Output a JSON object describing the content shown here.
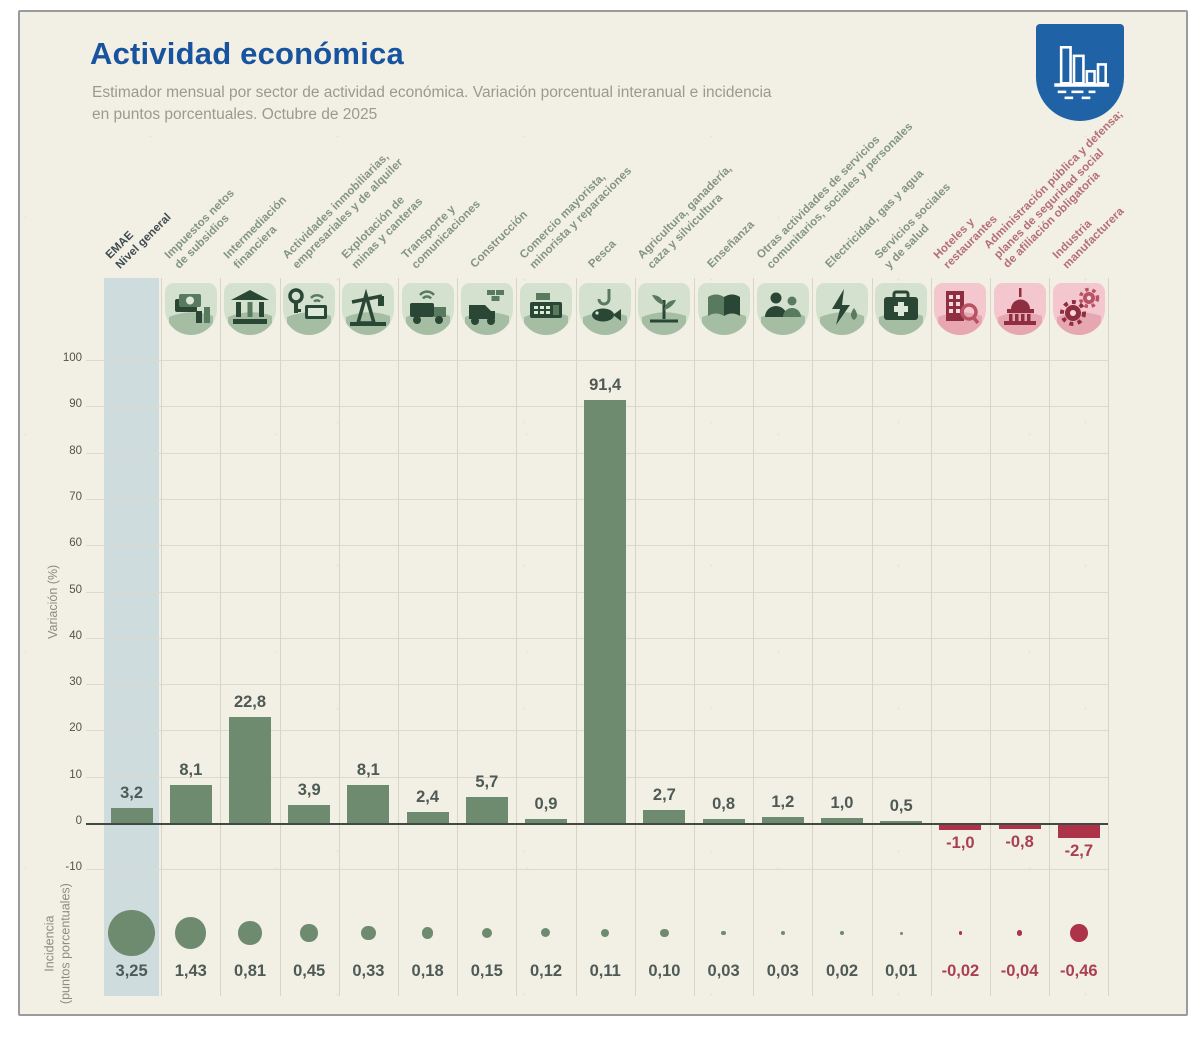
{
  "header": {
    "title": "Actividad económica",
    "subtitle_line1": "Estimador mensual por sector de actividad económica. Variación porcentual interanual e incidencia",
    "subtitle_line2": "en puntos porcentuales. Octubre de 2025",
    "logo_icon": "bar-chart-badge-icon"
  },
  "axes": {
    "variation_label": "Variación (%)",
    "incidence_label_line1": "Incidencia",
    "incidence_label_line2": "(puntos porcentuales)",
    "y_ticks": [
      100,
      90,
      80,
      70,
      60,
      50,
      40,
      30,
      20,
      10,
      0,
      -10
    ]
  },
  "colors": {
    "title_blue": "#17539e",
    "logo_blue": "#2062a6",
    "card_background": "#f2efe4",
    "highlight_band": "#cedcde",
    "bar_positive": "#6f8b6f",
    "bar_negative": "#ad3448",
    "value_positive_text": "#4d5a55",
    "value_negative_text": "#a93f50",
    "category_positive_text": "#83957f",
    "category_negative_text": "#b56e78",
    "grid": "#ddd9cc",
    "axis_line": "#3f4a41"
  },
  "chart_data": {
    "type": "bar",
    "title": "Actividad económica",
    "subtitle": "Estimador mensual por sector de actividad económica. Variación porcentual interanual e incidencia en puntos porcentuales. Octubre de 2025",
    "y_axis_top": "Variación (%)",
    "y_axis_bottom": "Incidencia (puntos porcentuales)",
    "ylim": [
      -10,
      100
    ],
    "y_ticks": [
      100,
      90,
      80,
      70,
      60,
      50,
      40,
      30,
      20,
      10,
      0,
      -10
    ],
    "grid": true,
    "sectors": [
      {
        "id": "emae-nivel-general",
        "label_lines": [
          "EMAE",
          "Nivel general"
        ],
        "icon": null,
        "tone": "highlight",
        "variation": 3.2,
        "variation_label": "3,2",
        "incidence": 3.25,
        "incidence_label": "3,25"
      },
      {
        "id": "impuestos-netos-de-subsidios",
        "label_lines": [
          "Impuestos netos",
          "de subsidios"
        ],
        "icon": "money",
        "tone": "green",
        "variation": 8.1,
        "variation_label": "8,1",
        "incidence": 1.43,
        "incidence_label": "1,43"
      },
      {
        "id": "intermediacion-financiera",
        "label_lines": [
          "Intermediación",
          "financiera"
        ],
        "icon": "bank",
        "tone": "green",
        "variation": 22.8,
        "variation_label": "22,8",
        "incidence": 0.81,
        "incidence_label": "0,81"
      },
      {
        "id": "actividades-inmobiliarias",
        "label_lines": [
          "Actividades inmobiliarias,",
          "empresariales y de alquiler"
        ],
        "icon": "real-estate",
        "tone": "green",
        "variation": 3.9,
        "variation_label": "3,9",
        "incidence": 0.45,
        "incidence_label": "0,45"
      },
      {
        "id": "explotacion-de-minas-y-canteras",
        "label_lines": [
          "Explotación de",
          "minas y canteras"
        ],
        "icon": "mining",
        "tone": "green",
        "variation": 8.1,
        "variation_label": "8,1",
        "incidence": 0.33,
        "incidence_label": "0,33"
      },
      {
        "id": "transporte-y-comunicaciones",
        "label_lines": [
          "Transporte y",
          "comunicaciones"
        ],
        "icon": "transport",
        "tone": "green",
        "variation": 2.4,
        "variation_label": "2,4",
        "incidence": 0.18,
        "incidence_label": "0,18"
      },
      {
        "id": "construccion",
        "label_lines": [
          "Construcción"
        ],
        "icon": "construction",
        "tone": "green",
        "variation": 5.7,
        "variation_label": "5,7",
        "incidence": 0.15,
        "incidence_label": "0,15"
      },
      {
        "id": "comercio-mayorista-minorista",
        "label_lines": [
          "Comercio mayorista,",
          "minorista y reparaciones"
        ],
        "icon": "commerce",
        "tone": "green",
        "variation": 0.9,
        "variation_label": "0,9",
        "incidence": 0.12,
        "incidence_label": "0,12"
      },
      {
        "id": "pesca",
        "label_lines": [
          "Pesca"
        ],
        "icon": "fishing",
        "tone": "green",
        "variation": 91.4,
        "variation_label": "91,4",
        "incidence": 0.11,
        "incidence_label": "0,11"
      },
      {
        "id": "agricultura-ganaderia",
        "label_lines": [
          "Agricultura, ganadería,",
          "caza y silvicultura"
        ],
        "icon": "agriculture",
        "tone": "green",
        "variation": 2.7,
        "variation_label": "2,7",
        "incidence": 0.1,
        "incidence_label": "0,10"
      },
      {
        "id": "ensenanza",
        "label_lines": [
          "Enseñanza"
        ],
        "icon": "education",
        "tone": "green",
        "variation": 0.8,
        "variation_label": "0,8",
        "incidence": 0.03,
        "incidence_label": "0,03"
      },
      {
        "id": "otras-actividades-de-servicios",
        "label_lines": [
          "Otras actividades de servicios",
          "comunitarios, sociales y personales"
        ],
        "icon": "community-services",
        "tone": "green",
        "variation": 1.2,
        "variation_label": "1,2",
        "incidence": 0.03,
        "incidence_label": "0,03"
      },
      {
        "id": "electricidad-gas-y-agua",
        "label_lines": [
          "Electricidad, gas y agua"
        ],
        "icon": "utilities",
        "tone": "green",
        "variation": 1.0,
        "variation_label": "1,0",
        "incidence": 0.02,
        "incidence_label": "0,02"
      },
      {
        "id": "servicios-sociales-y-de-salud",
        "label_lines": [
          "Servicios sociales",
          "y de salud"
        ],
        "icon": "health",
        "tone": "green",
        "variation": 0.5,
        "variation_label": "0,5",
        "incidence": 0.01,
        "incidence_label": "0,01"
      },
      {
        "id": "hoteles-y-restaurantes",
        "label_lines": [
          "Hoteles y",
          "restaurantes"
        ],
        "icon": "hotel",
        "tone": "red",
        "variation": -1.0,
        "variation_label": "-1,0",
        "incidence": -0.02,
        "incidence_label": "-0,02"
      },
      {
        "id": "administracion-publica-y-defensa",
        "label_lines": [
          "Administración pública y defensa;",
          "planes de seguridad social",
          "de afiliación obligatoria"
        ],
        "icon": "government",
        "tone": "red",
        "variation": -0.8,
        "variation_label": "-0,8",
        "incidence": -0.04,
        "incidence_label": "-0,04"
      },
      {
        "id": "industria-manufacturera",
        "label_lines": [
          "Industria",
          "manufacturera"
        ],
        "icon": "industry",
        "tone": "red",
        "variation": -2.7,
        "variation_label": "-2,7",
        "incidence": -0.46,
        "incidence_label": "-0,46"
      }
    ]
  }
}
